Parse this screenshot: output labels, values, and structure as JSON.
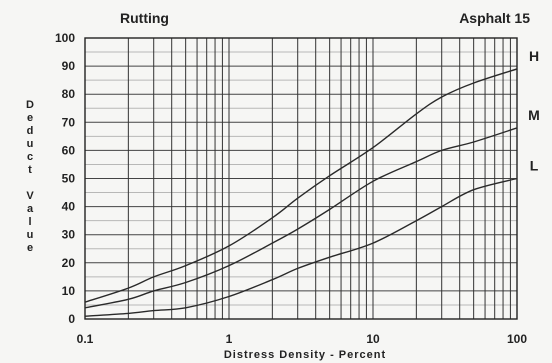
{
  "chart_data": {
    "type": "line",
    "title_left": "Rutting",
    "title_right": "Asphalt 15",
    "xlabel": "Distress Density - Percent",
    "ylabel": "Deduct Value",
    "x_scale": "log",
    "xlim": [
      0.1,
      100
    ],
    "ylim": [
      0,
      100
    ],
    "x_ticks": [
      "0.1",
      "1",
      "10",
      "100"
    ],
    "y_ticks": [
      "0",
      "10",
      "20",
      "30",
      "40",
      "50",
      "60",
      "70",
      "80",
      "90",
      "100"
    ],
    "grid": true,
    "series": [
      {
        "name": "H",
        "x": [
          0.1,
          0.2,
          0.3,
          0.5,
          1,
          2,
          3,
          5,
          10,
          20,
          30,
          50,
          100
        ],
        "y": [
          6,
          11,
          15,
          19,
          26,
          36,
          43,
          51,
          61,
          73,
          79,
          84,
          89
        ]
      },
      {
        "name": "M",
        "x": [
          0.1,
          0.2,
          0.3,
          0.5,
          1,
          2,
          3,
          5,
          10,
          20,
          30,
          50,
          100
        ],
        "y": [
          4,
          7,
          10,
          13,
          19,
          27,
          32,
          39,
          49,
          56,
          60,
          63,
          68
        ]
      },
      {
        "name": "L",
        "x": [
          0.1,
          0.2,
          0.3,
          0.5,
          1,
          2,
          3,
          5,
          10,
          20,
          30,
          50,
          100
        ],
        "y": [
          1,
          2,
          3,
          4,
          8,
          14,
          18,
          22,
          27,
          35,
          40,
          46,
          50
        ]
      }
    ]
  }
}
